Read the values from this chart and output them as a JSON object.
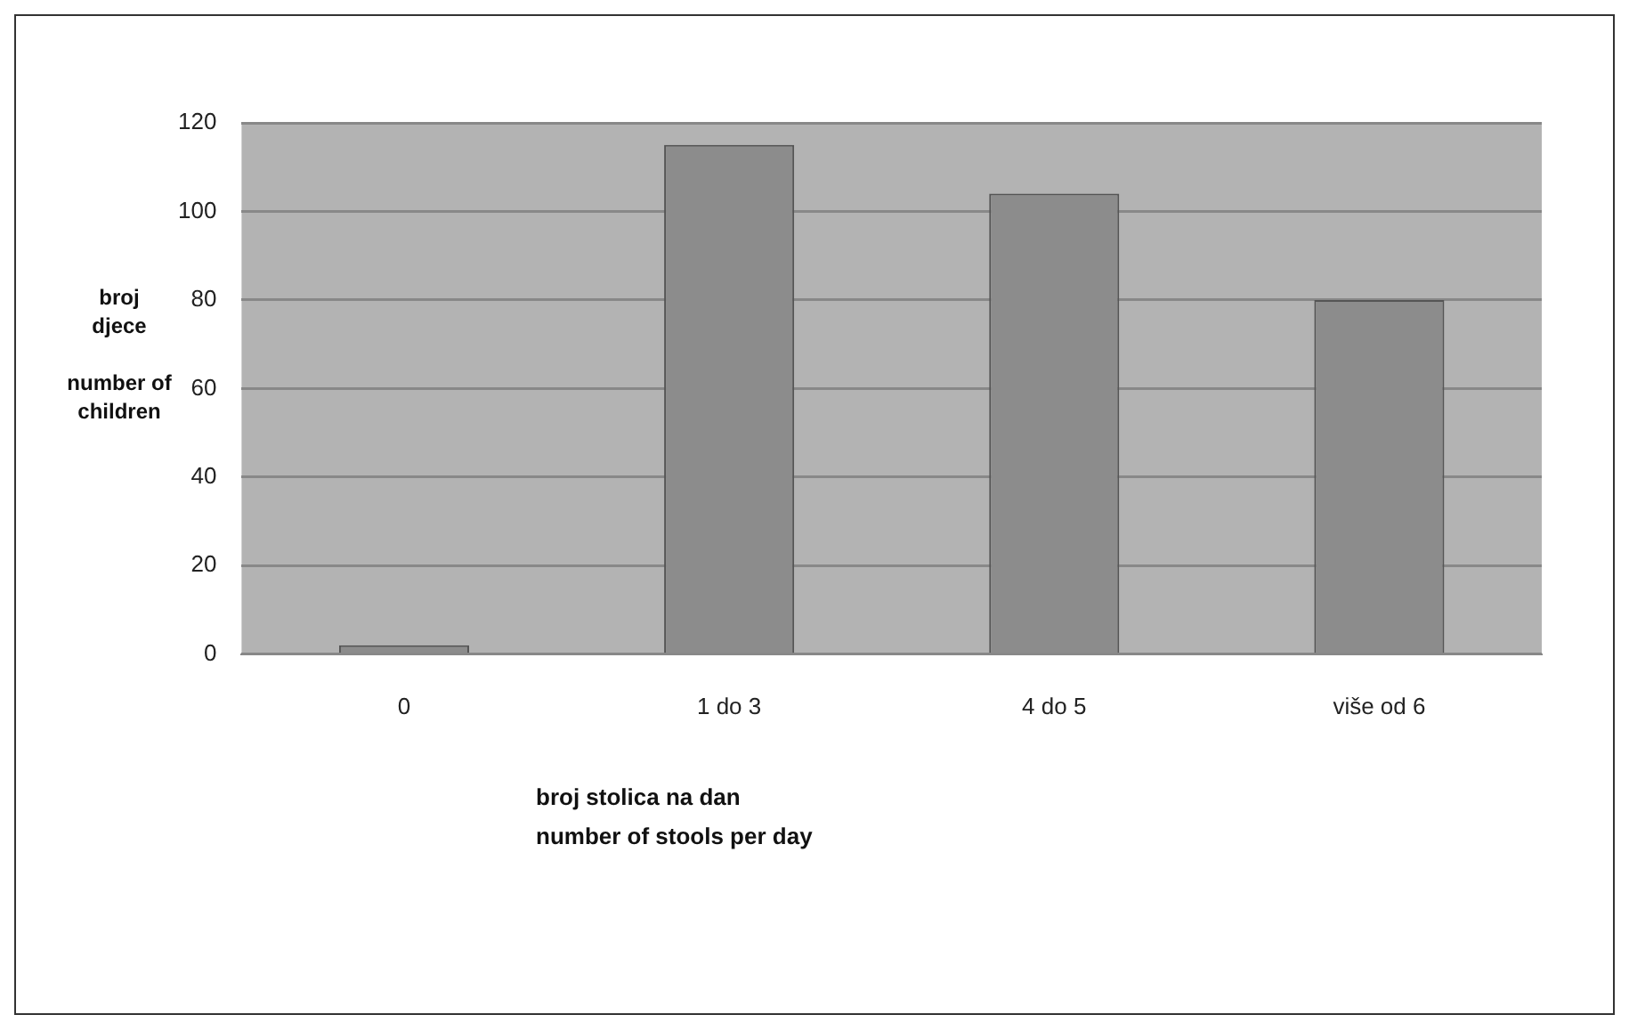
{
  "chart_data": {
    "type": "bar",
    "ylabel": "broj\ndjece\n\nnumber of\nchildren",
    "xlabel": "broj stolica na dan\nnumber of stools per day",
    "categories": [
      "0",
      "1 do 3",
      "4 do 5",
      "više od 6"
    ],
    "values": [
      2,
      115,
      104,
      80
    ],
    "color": "#8c8c8c",
    "ylim": [
      0,
      120
    ],
    "yticks": [
      0,
      20,
      40,
      60,
      80,
      100,
      120
    ],
    "grid": "y"
  }
}
